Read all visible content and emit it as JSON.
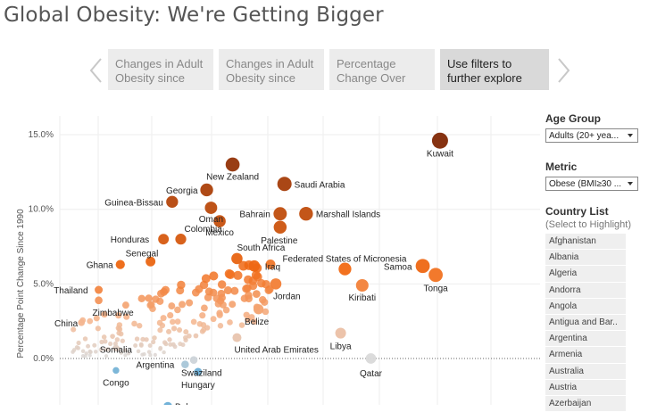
{
  "title": "Global Obesity: We're Getting Bigger",
  "story": {
    "points": [
      {
        "label": "Changes in Adult Obesity since",
        "active": false
      },
      {
        "label": "Changes in Adult Obesity since",
        "active": false
      },
      {
        "label": "Percentage Change Over",
        "active": false
      },
      {
        "label": "Use filters to further explore",
        "active": true
      }
    ],
    "prev_icon": "chevron-left-icon",
    "next_icon": "chevron-right-icon"
  },
  "filters": {
    "age_group": {
      "label": "Age Group",
      "value": "Adults (20+ yea..."
    },
    "metric": {
      "label": "Metric",
      "value": "Obese (BMI≥30 ..."
    },
    "country_list": {
      "label": "Country List",
      "sublabel": "(Select to Highlight)",
      "items": [
        "Afghanistan",
        "Albania",
        "Algeria",
        "Andorra",
        "Angola",
        "Antigua and Bar..",
        "Argentina",
        "Armenia",
        "Australia",
        "Austria",
        "Azerbaijan"
      ]
    }
  },
  "chart_data": {
    "type": "scatter",
    "title": "",
    "xlabel": "",
    "ylabel": "Percentage Point Change Since 1990",
    "ylim": [
      -3.0,
      16.0
    ],
    "yticks": [
      0,
      5,
      10,
      15
    ],
    "ytick_labels": [
      "0.0%",
      "5.0%",
      "10.0%",
      "15.0%"
    ],
    "grid": true,
    "color_scale": {
      "low": "#6aaed6",
      "mid": "#d9d9d9",
      "high": "#7f2704"
    },
    "labeled_points": [
      {
        "name": "Kuwait",
        "x": 0.88,
        "y": 14.6
      },
      {
        "name": "New Zealand",
        "x": 0.4,
        "y": 13.0
      },
      {
        "name": "Saudi Arabia",
        "x": 0.52,
        "y": 11.7
      },
      {
        "name": "Georgia",
        "x": 0.34,
        "y": 11.3
      },
      {
        "name": "Guinea-Bissau",
        "x": 0.26,
        "y": 10.5
      },
      {
        "name": "Oman",
        "x": 0.35,
        "y": 10.1
      },
      {
        "name": "Bahrain",
        "x": 0.51,
        "y": 9.7
      },
      {
        "name": "Marshall Islands",
        "x": 0.57,
        "y": 9.7
      },
      {
        "name": "Mexico",
        "x": 0.37,
        "y": 9.2
      },
      {
        "name": "Palestine",
        "x": 0.51,
        "y": 8.8
      },
      {
        "name": "Colombia",
        "x": 0.28,
        "y": 8.0
      },
      {
        "name": "Honduras",
        "x": 0.24,
        "y": 8.0
      },
      {
        "name": "South Africa",
        "x": 0.41,
        "y": 6.7
      },
      {
        "name": "Federated States of Micronesia",
        "x": 0.66,
        "y": 6.0
      },
      {
        "name": "Senegal",
        "x": 0.21,
        "y": 6.5
      },
      {
        "name": "Ghana",
        "x": 0.14,
        "y": 6.3
      },
      {
        "name": "Iraq",
        "x": 0.45,
        "y": 6.2
      },
      {
        "name": "Samoa",
        "x": 0.84,
        "y": 6.2
      },
      {
        "name": "Tonga",
        "x": 0.87,
        "y": 5.6
      },
      {
        "name": "Jordan",
        "x": 0.5,
        "y": 5.0
      },
      {
        "name": "Kiribati",
        "x": 0.7,
        "y": 4.9
      },
      {
        "name": "Thailand",
        "x": 0.09,
        "y": 4.6
      },
      {
        "name": "Zimbabwe",
        "x": 0.09,
        "y": 3.9
      },
      {
        "name": "Belize",
        "x": 0.46,
        "y": 3.3
      },
      {
        "name": "China",
        "x": 0.05,
        "y": 2.4
      },
      {
        "name": "Libya",
        "x": 0.65,
        "y": 1.7
      },
      {
        "name": "United Arab Emirates",
        "x": 0.41,
        "y": 1.4
      },
      {
        "name": "Somalia",
        "x": 0.13,
        "y": 0.7
      },
      {
        "name": "Argentina",
        "x": 0.29,
        "y": -0.4
      },
      {
        "name": "Swaziland",
        "x": 0.31,
        "y": -0.1
      },
      {
        "name": "Qatar",
        "x": 0.72,
        "y": 0.0
      },
      {
        "name": "Congo",
        "x": 0.13,
        "y": -0.8
      },
      {
        "name": "Hungary",
        "x": 0.32,
        "y": -0.9
      },
      {
        "name": "Belarus",
        "x": 0.25,
        "y": -3.2
      }
    ]
  }
}
